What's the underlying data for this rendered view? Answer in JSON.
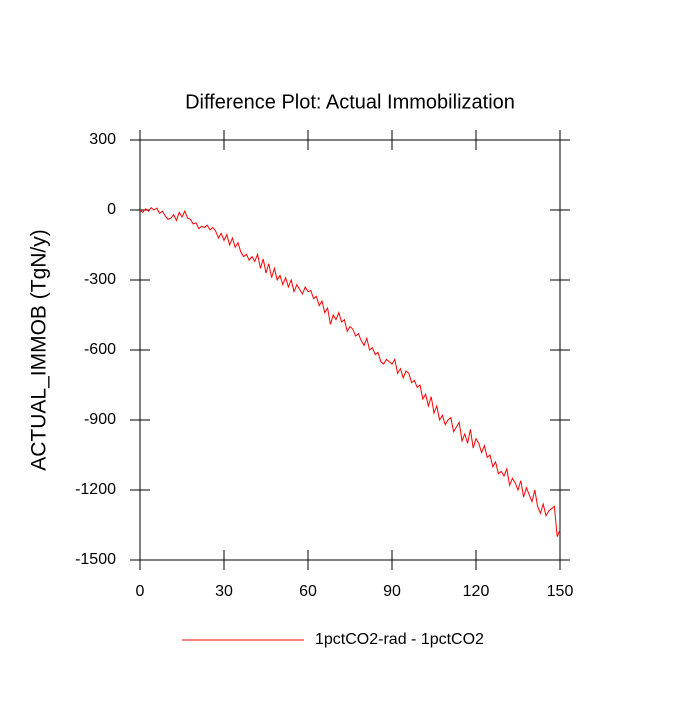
{
  "chart_data": {
    "type": "line",
    "title": "Difference Plot: Actual Immobilization",
    "y_label": "ACTUAL_IMMOB  (TgN/y)",
    "x": [
      0,
      1,
      2,
      3,
      4,
      5,
      6,
      7,
      8,
      9,
      10,
      11,
      12,
      13,
      14,
      15,
      16,
      17,
      18,
      19,
      20,
      21,
      22,
      23,
      24,
      25,
      26,
      27,
      28,
      29,
      30,
      31,
      32,
      33,
      34,
      35,
      36,
      37,
      38,
      39,
      40,
      41,
      42,
      43,
      44,
      45,
      46,
      47,
      48,
      49,
      50,
      51,
      52,
      53,
      54,
      55,
      56,
      57,
      58,
      59,
      60,
      61,
      62,
      63,
      64,
      65,
      66,
      67,
      68,
      69,
      70,
      71,
      72,
      73,
      74,
      75,
      76,
      77,
      78,
      79,
      80,
      81,
      82,
      83,
      84,
      85,
      86,
      87,
      88,
      89,
      90,
      91,
      92,
      93,
      94,
      95,
      96,
      97,
      98,
      99,
      100,
      101,
      102,
      103,
      104,
      105,
      106,
      107,
      108,
      109,
      110,
      111,
      112,
      113,
      114,
      115,
      116,
      117,
      118,
      119,
      120,
      121,
      122,
      123,
      124,
      125,
      126,
      127,
      128,
      129,
      130,
      131,
      132,
      133,
      134,
      135,
      136,
      137,
      138,
      139,
      140,
      141,
      142,
      143,
      144,
      145,
      146,
      147,
      148,
      149,
      150
    ],
    "series": [
      {
        "name": "1pctCO2-rad - 1pctCO2",
        "color": "#ff0000",
        "values": [
          0,
          -10,
          5,
          -5,
          10,
          0,
          8,
          -15,
          -5,
          -25,
          -40,
          -35,
          -20,
          -45,
          -10,
          -30,
          -5,
          -35,
          -40,
          -60,
          -55,
          -80,
          -70,
          -75,
          -65,
          -85,
          -75,
          -90,
          -120,
          -100,
          -130,
          -105,
          -150,
          -120,
          -160,
          -140,
          -180,
          -200,
          -190,
          -215,
          -200,
          -220,
          -190,
          -250,
          -210,
          -270,
          -230,
          -290,
          -250,
          -300,
          -280,
          -320,
          -290,
          -330,
          -300,
          -350,
          -320,
          -340,
          -360,
          -330,
          -350,
          -345,
          -380,
          -370,
          -410,
          -390,
          -440,
          -420,
          -490,
          -450,
          -470,
          -440,
          -480,
          -470,
          -520,
          -500,
          -510,
          -540,
          -530,
          -560,
          -580,
          -550,
          -600,
          -590,
          -620,
          -610,
          -650,
          -660,
          -640,
          -650,
          -660,
          -640,
          -700,
          -680,
          -720,
          -690,
          -700,
          -740,
          -730,
          -760,
          -750,
          -810,
          -790,
          -840,
          -800,
          -870,
          -840,
          -900,
          -880,
          -920,
          -900,
          -890,
          -950,
          -930,
          -910,
          -990,
          -960,
          -1000,
          -940,
          -1020,
          -980,
          -1000,
          -1040,
          -1010,
          -1060,
          -1050,
          -1100,
          -1080,
          -1130,
          -1120,
          -1140,
          -1110,
          -1180,
          -1150,
          -1170,
          -1200,
          -1160,
          -1230,
          -1190,
          -1220,
          -1250,
          -1200,
          -1270,
          -1300,
          -1260,
          -1310,
          -1290,
          -1280,
          -1270,
          -1400,
          -1370
        ]
      }
    ],
    "xlim": [
      0,
      150
    ],
    "xticks": [
      0,
      30,
      60,
      90,
      120,
      150
    ],
    "ylim": [
      -1500,
      300
    ],
    "yticks": [
      -1500,
      -1200,
      -900,
      -600,
      -300,
      0,
      300
    ],
    "legend": "bottom"
  }
}
